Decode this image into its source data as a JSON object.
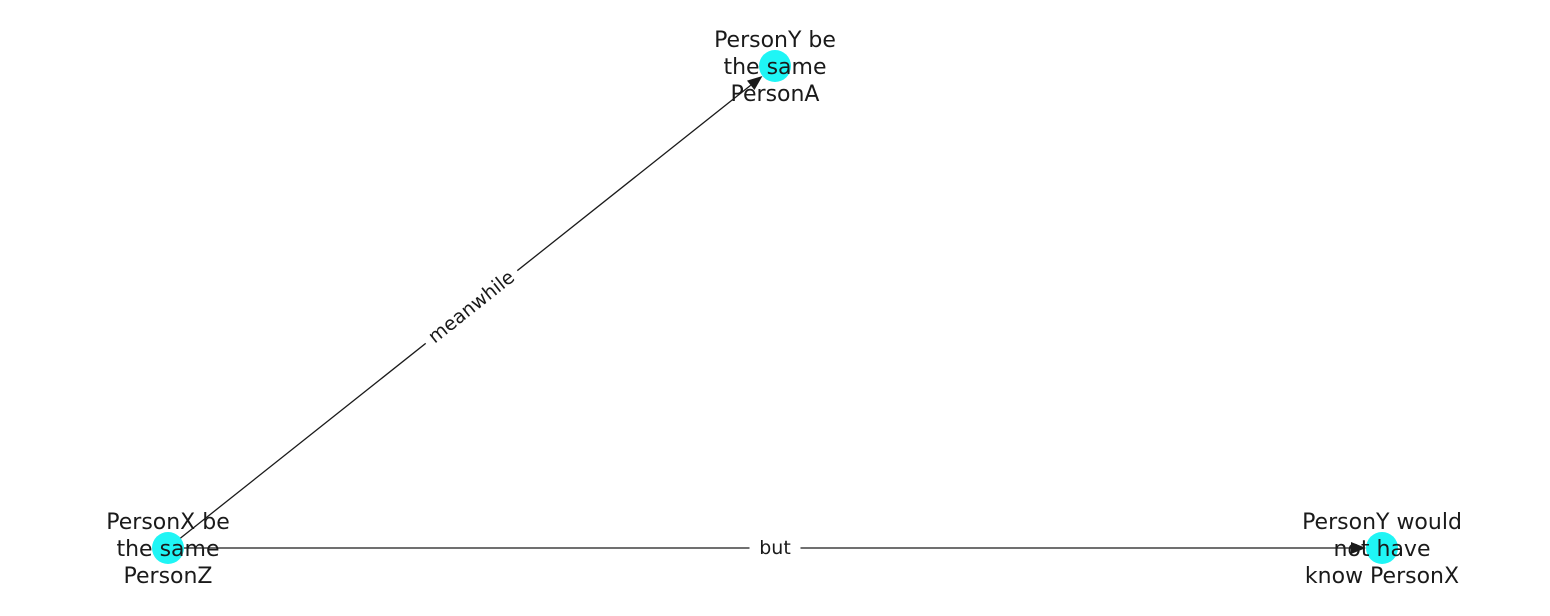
{
  "graph": {
    "node_color": "#1ff5f5",
    "edge_color": "#1a1a1a",
    "nodes": [
      {
        "id": "n0",
        "lines": [
          "PersonX be",
          "the same",
          "PersonZ"
        ]
      },
      {
        "id": "n1",
        "lines": [
          "PersonY be",
          "the same",
          "PersonA"
        ]
      },
      {
        "id": "n2",
        "lines": [
          "PersonY would",
          "not have",
          "know PersonX"
        ]
      }
    ],
    "edges": [
      {
        "id": "e0",
        "source": "n0",
        "target": "n1",
        "label": "meanwhile"
      },
      {
        "id": "e1",
        "source": "n0",
        "target": "n2",
        "label": "but"
      }
    ]
  }
}
